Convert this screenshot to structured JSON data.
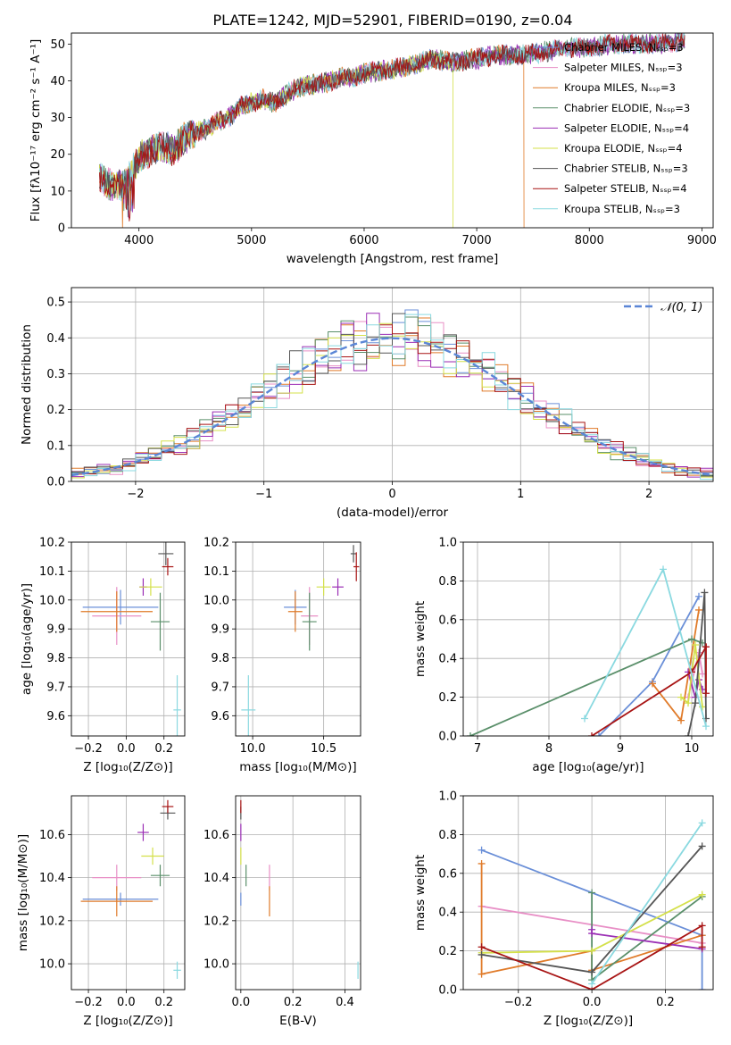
{
  "figure_title": "PLATE=1242, MJD=52901, FIBERID=0190, z=0.04",
  "series_colors": [
    "#6a8fd8",
    "#e88fc6",
    "#e07b2a",
    "#5a8f6a",
    "#9b2fb5",
    "#d4e04a",
    "#555555",
    "#a81414",
    "#8ad9e0"
  ],
  "legend_labels": [
    "Chabrier MILES, Nₛₛₚ=3",
    "Salpeter MILES, Nₛₛₚ=3",
    "Kroupa MILES, Nₛₛₚ=3",
    "Chabrier ELODIE, Nₛₛₚ=3",
    "Salpeter ELODIE, Nₛₛₚ=4",
    "Kroupa ELODIE, Nₛₛₚ=4",
    "Chabrier STELIB, Nₛₛₚ=3",
    "Salpeter STELIB, Nₛₛₚ=4",
    "Kroupa STELIB, Nₛₛₚ=3"
  ],
  "chart_data": [
    {
      "type": "line",
      "xlabel": "wavelength [Angstrom, rest frame]",
      "ylabel": "Flux [fλ10⁻¹⁷ erg cm⁻² s⁻¹ A⁻¹]",
      "xlim": [
        3400,
        9100
      ],
      "ylim": [
        0,
        53
      ],
      "xticks": [
        4000,
        5000,
        6000,
        7000,
        8000,
        9000
      ],
      "yticks": [
        0,
        10,
        20,
        30,
        40,
        50
      ],
      "legend_position": "upper right",
      "spectrum_anchor_points": {
        "x": [
          3650,
          3700,
          3800,
          3900,
          4000,
          4100,
          4200,
          4300,
          4400,
          4500,
          4600,
          4700,
          4800,
          4900,
          5000,
          5100,
          5200,
          5300,
          5400,
          5500,
          5600,
          5700,
          5800,
          5900,
          6000,
          6200,
          6400,
          6600,
          6800,
          7000,
          7200,
          7400,
          7600,
          7800,
          8000,
          8200,
          8400,
          8600,
          8850
        ],
        "y": [
          14,
          12,
          11,
          13,
          19,
          21,
          22,
          21,
          24,
          26,
          27,
          29,
          30,
          33,
          34,
          35,
          34,
          36,
          38,
          39,
          39,
          40,
          41,
          41,
          42,
          43,
          44,
          46,
          45,
          46,
          47,
          47,
          48,
          49,
          49,
          50,
          50,
          50,
          51
        ]
      },
      "series_cut_wavelengths": {
        "Kroupa ELODIE": 6790,
        "Kroupa MILES": 7420
      }
    },
    {
      "type": "histogram",
      "xlabel": "(data-model)/error",
      "ylabel": "Normed distribution",
      "xlim": [
        -2.5,
        2.5
      ],
      "ylim": [
        0,
        0.54
      ],
      "xticks": [
        -2,
        -1,
        0,
        1,
        2
      ],
      "yticks": [
        0.0,
        0.1,
        0.2,
        0.3,
        0.4,
        0.5
      ],
      "bin_width": 0.1,
      "reference_curve": {
        "name": "𝒩(0, 1)",
        "mean": 0,
        "sigma": 1
      },
      "legend_position": "upper right",
      "grid": true
    },
    {
      "type": "scatter",
      "xlabel": "Z [log₁₀(Z/Z⊙)]",
      "ylabel": "age  [log₁₀(age/yr)]",
      "xlim": [
        -0.29,
        0.31
      ],
      "ylim": [
        9.53,
        10.2
      ],
      "xticks": [
        -0.2,
        0.0,
        0.2
      ],
      "yticks": [
        9.6,
        9.7,
        9.8,
        9.9,
        10.0,
        10.1,
        10.2
      ],
      "points": [
        {
          "x": -0.03,
          "y": 9.975,
          "xerr": 0.2,
          "yerr": 0.06
        },
        {
          "x": -0.05,
          "y": 9.945,
          "xerr": 0.13,
          "yerr": 0.1
        },
        {
          "x": -0.05,
          "y": 9.96,
          "xerr": 0.19,
          "yerr": 0.07
        },
        {
          "x": 0.18,
          "y": 9.925,
          "xerr": 0.05,
          "yerr": 0.1
        },
        {
          "x": 0.09,
          "y": 10.045,
          "xerr": 0.02,
          "yerr": 0.03
        },
        {
          "x": 0.13,
          "y": 10.045,
          "xerr": 0.06,
          "yerr": 0.03
        },
        {
          "x": 0.21,
          "y": 10.16,
          "xerr": 0.04,
          "yerr": 0.04
        },
        {
          "x": 0.22,
          "y": 10.115,
          "xerr": 0.03,
          "yerr": 0.03
        },
        {
          "x": 0.27,
          "y": 9.62,
          "xerr": 0.02,
          "yerr": 0.12
        }
      ],
      "grid": true
    },
    {
      "type": "scatter",
      "xlabel": "mass [log₁₀(M/M⊙)]",
      "ylabel": "",
      "xlim": [
        9.88,
        10.76
      ],
      "ylim": [
        9.53,
        10.2
      ],
      "xticks": [
        10.0,
        10.5
      ],
      "yticks": [
        9.6,
        9.7,
        9.8,
        9.9,
        10.0,
        10.1,
        10.2
      ],
      "points": [
        {
          "x": 10.3,
          "y": 9.975,
          "xerr": 0.08,
          "yerr": 0.06
        },
        {
          "x": 10.4,
          "y": 9.945,
          "xerr": 0.06,
          "yerr": 0.1
        },
        {
          "x": 10.3,
          "y": 9.96,
          "xerr": 0.05,
          "yerr": 0.07
        },
        {
          "x": 10.4,
          "y": 9.925,
          "xerr": 0.05,
          "yerr": 0.1
        },
        {
          "x": 10.6,
          "y": 10.045,
          "xerr": 0.04,
          "yerr": 0.03
        },
        {
          "x": 10.5,
          "y": 10.045,
          "xerr": 0.05,
          "yerr": 0.03
        },
        {
          "x": 10.71,
          "y": 10.16,
          "xerr": 0.02,
          "yerr": 0.03
        },
        {
          "x": 10.73,
          "y": 10.115,
          "xerr": 0.02,
          "yerr": 0.05
        },
        {
          "x": 9.97,
          "y": 9.62,
          "xerr": 0.05,
          "yerr": 0.12
        }
      ],
      "grid": true
    },
    {
      "type": "line",
      "xlabel": "age  [log₁₀(age/yr)]",
      "ylabel": "mass weight",
      "xlim": [
        6.8,
        10.3
      ],
      "ylim": [
        0,
        1.0
      ],
      "xticks": [
        7,
        8,
        9,
        10
      ],
      "yticks": [
        0.0,
        0.2,
        0.4,
        0.6,
        0.8,
        1.0
      ],
      "series": [
        {
          "x": [
            8.7,
            9.45,
            10.1
          ],
          "y": [
            0.0,
            0.28,
            0.72
          ]
        },
        {
          "x": [
            9.95,
            10.1,
            10.15
          ],
          "y": [
            0.2,
            0.43,
            0.32
          ]
        },
        {
          "x": [
            9.45,
            9.85,
            10.1
          ],
          "y": [
            0.27,
            0.08,
            0.65
          ]
        },
        {
          "x": [
            6.9,
            10.0,
            10.15
          ],
          "y": [
            0.0,
            0.5,
            0.48
          ]
        },
        {
          "x": [
            9.95,
            10.05,
            10.1,
            10.15
          ],
          "y": [
            0.33,
            0.2,
            0.29,
            0.24
          ]
        },
        {
          "x": [
            9.85,
            9.95,
            10.05,
            10.15
          ],
          "y": [
            0.2,
            0.17,
            0.47,
            0.15
          ]
        },
        {
          "x": [
            9.95,
            10.05,
            10.18,
            10.2
          ],
          "y": [
            0.0,
            0.17,
            0.74,
            0.09
          ]
        },
        {
          "x": [
            8.6,
            10.0,
            10.2,
            10.2
          ],
          "y": [
            0.0,
            0.33,
            0.46,
            0.22
          ]
        },
        {
          "x": [
            8.5,
            9.6,
            10.2
          ],
          "y": [
            0.09,
            0.86,
            0.05
          ]
        }
      ],
      "grid": true
    },
    {
      "type": "scatter",
      "xlabel": "Z [log₁₀(Z/Z⊙)]",
      "ylabel": "mass [log₁₀(M/M⊙)]",
      "xlim": [
        -0.29,
        0.31
      ],
      "ylim": [
        9.88,
        10.78
      ],
      "xticks": [
        -0.2,
        0.0,
        0.2
      ],
      "yticks": [
        10.0,
        10.2,
        10.4,
        10.6
      ],
      "points": [
        {
          "x": -0.03,
          "y": 10.3,
          "xerr": 0.2,
          "yerr": 0.03
        },
        {
          "x": -0.05,
          "y": 10.4,
          "xerr": 0.13,
          "yerr": 0.06
        },
        {
          "x": -0.05,
          "y": 10.29,
          "xerr": 0.19,
          "yerr": 0.07
        },
        {
          "x": 0.18,
          "y": 10.41,
          "xerr": 0.05,
          "yerr": 0.05
        },
        {
          "x": 0.09,
          "y": 10.61,
          "xerr": 0.03,
          "yerr": 0.04
        },
        {
          "x": 0.14,
          "y": 10.5,
          "xerr": 0.06,
          "yerr": 0.04
        },
        {
          "x": 0.22,
          "y": 10.7,
          "xerr": 0.04,
          "yerr": 0.03
        },
        {
          "x": 0.22,
          "y": 10.73,
          "xerr": 0.03,
          "yerr": 0.03
        },
        {
          "x": 0.27,
          "y": 9.97,
          "xerr": 0.02,
          "yerr": 0.04
        }
      ],
      "grid": true
    },
    {
      "type": "scatter",
      "xlabel": "E(B-V)",
      "ylabel": "",
      "xlim": [
        -0.02,
        0.46
      ],
      "ylim": [
        9.88,
        10.78
      ],
      "xticks": [
        0.0,
        0.2,
        0.4
      ],
      "yticks": [
        10.0,
        10.2,
        10.4,
        10.6
      ],
      "points": [
        {
          "x": 0.0,
          "y": 10.3,
          "xerr": 0.0,
          "yerr": 0.03
        },
        {
          "x": 0.11,
          "y": 10.4,
          "xerr": 0.0,
          "yerr": 0.06
        },
        {
          "x": 0.11,
          "y": 10.29,
          "xerr": 0.0,
          "yerr": 0.07
        },
        {
          "x": 0.02,
          "y": 10.41,
          "xerr": 0.0,
          "yerr": 0.05
        },
        {
          "x": 0.0,
          "y": 10.61,
          "xerr": 0.0,
          "yerr": 0.04
        },
        {
          "x": 0.0,
          "y": 10.5,
          "xerr": 0.0,
          "yerr": 0.04
        },
        {
          "x": 0.0,
          "y": 10.7,
          "xerr": 0.0,
          "yerr": 0.03
        },
        {
          "x": 0.0,
          "y": 10.73,
          "xerr": 0.0,
          "yerr": 0.03
        },
        {
          "x": 0.45,
          "y": 9.97,
          "xerr": 0.0,
          "yerr": 0.04
        }
      ],
      "grid": true
    },
    {
      "type": "line",
      "xlabel": "Z [log₁₀(Z/Z⊙)]",
      "ylabel": "mass weight",
      "xlim": [
        -0.35,
        0.33
      ],
      "ylim": [
        0,
        1.0
      ],
      "xticks": [
        -0.2,
        0.0,
        0.2
      ],
      "yticks": [
        0.0,
        0.2,
        0.4,
        0.6,
        0.8,
        1.0
      ],
      "series": [
        {
          "x": [
            -0.3,
            0.3,
            0.3
          ],
          "y": [
            0.72,
            0.28,
            0.0
          ]
        },
        {
          "x": [
            -0.3,
            0.3
          ],
          "y": [
            0.43,
            0.24
          ]
        },
        {
          "x": [
            -0.3,
            -0.3,
            0.0,
            0.0,
            0.3
          ],
          "y": [
            0.65,
            0.08,
            0.2,
            0.1,
            0.28
          ]
        },
        {
          "x": [
            0.0,
            0.0,
            0.3
          ],
          "y": [
            0.5,
            0.05,
            0.48
          ]
        },
        {
          "x": [
            0.0,
            0.0,
            0.3
          ],
          "y": [
            0.31,
            0.29,
            0.21
          ]
        },
        {
          "x": [
            -0.3,
            0.0,
            0.3
          ],
          "y": [
            0.19,
            0.2,
            0.49
          ]
        },
        {
          "x": [
            -0.3,
            0.0,
            0.3
          ],
          "y": [
            0.18,
            0.09,
            0.74
          ]
        },
        {
          "x": [
            -0.3,
            0.0,
            0.3,
            0.3
          ],
          "y": [
            0.22,
            0.0,
            0.33,
            0.22
          ]
        },
        {
          "x": [
            0.0,
            0.3
          ],
          "y": [
            0.03,
            0.86
          ]
        }
      ],
      "grid": true
    }
  ]
}
